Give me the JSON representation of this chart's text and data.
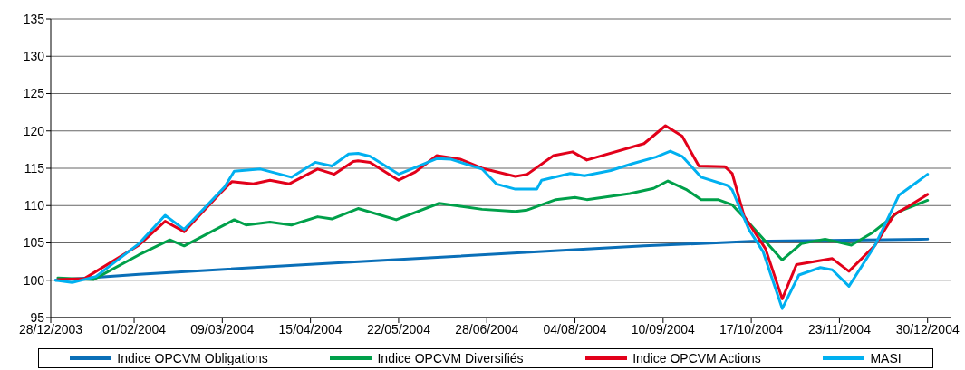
{
  "chart_data": {
    "type": "line",
    "xlim": [
      "2003-12-28",
      "2005-01-09"
    ],
    "xticks": [
      {
        "value": "2003-12-28",
        "label": "28/12/2003"
      },
      {
        "value": "2004-02-01",
        "label": "01/02/2004"
      },
      {
        "value": "2004-03-09",
        "label": "09/03/2004"
      },
      {
        "value": "2004-04-15",
        "label": "15/04/2004"
      },
      {
        "value": "2004-05-22",
        "label": "22/05/2004"
      },
      {
        "value": "2004-06-28",
        "label": "28/06/2004"
      },
      {
        "value": "2004-08-04",
        "label": "04/08/2004"
      },
      {
        "value": "2004-09-10",
        "label": "10/09/2004"
      },
      {
        "value": "2004-10-17",
        "label": "17/10/2004"
      },
      {
        "value": "2004-11-23",
        "label": "23/11/2004"
      },
      {
        "value": "2004-12-30",
        "label": "30/12/2004"
      }
    ],
    "ylim": [
      95,
      135
    ],
    "yticks": [
      95,
      100,
      105,
      110,
      115,
      120,
      125,
      130,
      135
    ],
    "grid": "y",
    "legend": "bottom",
    "marker": "none",
    "line_style": "solid",
    "series": [
      {
        "name": "Indice OPCVM Obligations",
        "color": "#0a6fb8",
        "x": [
          "2003-12-30",
          "2004-02-03",
          "2004-04-30",
          "2004-09-02",
          "2004-10-17",
          "2004-12-30"
        ],
        "values": [
          100.0,
          100.8,
          102.4,
          104.6,
          105.2,
          105.5
        ]
      },
      {
        "name": "Indice OPCVM Diversifiés",
        "color": "#00a04a",
        "x": [
          "2003-12-31",
          "2004-01-15",
          "2004-02-03",
          "2004-02-16",
          "2004-02-22",
          "2004-03-14",
          "2004-03-19",
          "2004-03-29",
          "2004-04-07",
          "2004-04-18",
          "2004-04-24",
          "2004-05-05",
          "2004-05-21",
          "2004-06-08",
          "2004-06-26",
          "2004-07-10",
          "2004-07-15",
          "2004-07-27",
          "2004-08-04",
          "2004-08-09",
          "2004-08-27",
          "2004-09-06",
          "2004-09-12",
          "2004-09-20",
          "2004-09-26",
          "2004-10-03",
          "2004-10-09",
          "2004-10-14",
          "2004-10-30",
          "2004-11-07",
          "2004-11-17",
          "2004-11-28",
          "2004-12-07",
          "2004-12-18",
          "2004-12-30"
        ],
        "values": [
          100.3,
          100.1,
          103.4,
          105.4,
          104.6,
          108.1,
          107.4,
          107.8,
          107.4,
          108.5,
          108.2,
          109.6,
          108.1,
          110.3,
          109.5,
          109.2,
          109.4,
          110.8,
          111.1,
          110.8,
          111.6,
          112.3,
          113.3,
          112.1,
          110.8,
          110.8,
          110.1,
          108.4,
          102.7,
          104.9,
          105.5,
          104.7,
          106.4,
          109.2,
          110.7
        ]
      },
      {
        "name": "Indice OPCVM Actions",
        "color": "#e2001a",
        "x": [
          "2003-12-31",
          "2004-01-11",
          "2004-02-03",
          "2004-02-14",
          "2004-02-22",
          "2004-03-08",
          "2004-03-13",
          "2004-03-22",
          "2004-03-29",
          "2004-04-06",
          "2004-04-18",
          "2004-04-25",
          "2004-05-03",
          "2004-05-05",
          "2004-05-10",
          "2004-05-22",
          "2004-05-29",
          "2004-06-07",
          "2004-06-17",
          "2004-06-26",
          "2004-07-10",
          "2004-07-15",
          "2004-07-26",
          "2004-08-03",
          "2004-08-09",
          "2004-09-02",
          "2004-09-11",
          "2004-09-18",
          "2004-09-25",
          "2004-10-06",
          "2004-10-09",
          "2004-10-14",
          "2004-10-23",
          "2004-10-30",
          "2004-11-05",
          "2004-11-20",
          "2004-11-27",
          "2004-12-08",
          "2004-12-16",
          "2004-12-22",
          "2004-12-30"
        ],
        "values": [
          100.1,
          100.2,
          104.7,
          107.9,
          106.5,
          111.6,
          113.2,
          112.9,
          113.4,
          112.9,
          114.9,
          114.2,
          115.9,
          116.0,
          115.8,
          113.4,
          114.5,
          116.7,
          116.2,
          115.0,
          113.9,
          114.2,
          116.7,
          117.2,
          116.1,
          118.3,
          120.7,
          119.3,
          115.3,
          115.2,
          114.3,
          108.6,
          104.2,
          97.5,
          102.1,
          102.9,
          101.2,
          104.7,
          108.8,
          109.9,
          111.5
        ]
      },
      {
        "name": "MASI",
        "color": "#00b0f0",
        "x": [
          "2003-12-30",
          "2004-01-06",
          "2004-01-16",
          "2004-02-03",
          "2004-02-14",
          "2004-02-22",
          "2004-03-10",
          "2004-03-14",
          "2004-03-25",
          "2004-04-07",
          "2004-04-17",
          "2004-04-24",
          "2004-05-01",
          "2004-05-05",
          "2004-05-10",
          "2004-05-22",
          "2004-06-07",
          "2004-06-13",
          "2004-06-26",
          "2004-07-02",
          "2004-07-10",
          "2004-07-19",
          "2004-07-21",
          "2004-08-02",
          "2004-08-08",
          "2004-08-19",
          "2004-08-28",
          "2004-09-07",
          "2004-09-13",
          "2004-09-18",
          "2004-09-26",
          "2004-10-07",
          "2004-10-09",
          "2004-10-16",
          "2004-10-22",
          "2004-10-30",
          "2004-11-06",
          "2004-11-15",
          "2004-11-20",
          "2004-11-27",
          "2004-12-08",
          "2004-12-18",
          "2004-12-30"
        ],
        "values": [
          100.0,
          99.7,
          100.5,
          104.9,
          108.7,
          106.8,
          112.5,
          114.6,
          114.9,
          113.8,
          115.8,
          115.3,
          116.9,
          117.0,
          116.6,
          114.2,
          116.3,
          116.2,
          114.9,
          112.9,
          112.2,
          112.2,
          113.4,
          114.3,
          114.0,
          114.7,
          115.6,
          116.5,
          117.3,
          116.6,
          113.8,
          112.7,
          112.1,
          106.8,
          103.8,
          96.2,
          100.7,
          101.7,
          101.4,
          99.2,
          104.7,
          111.4,
          114.2
        ]
      }
    ]
  }
}
